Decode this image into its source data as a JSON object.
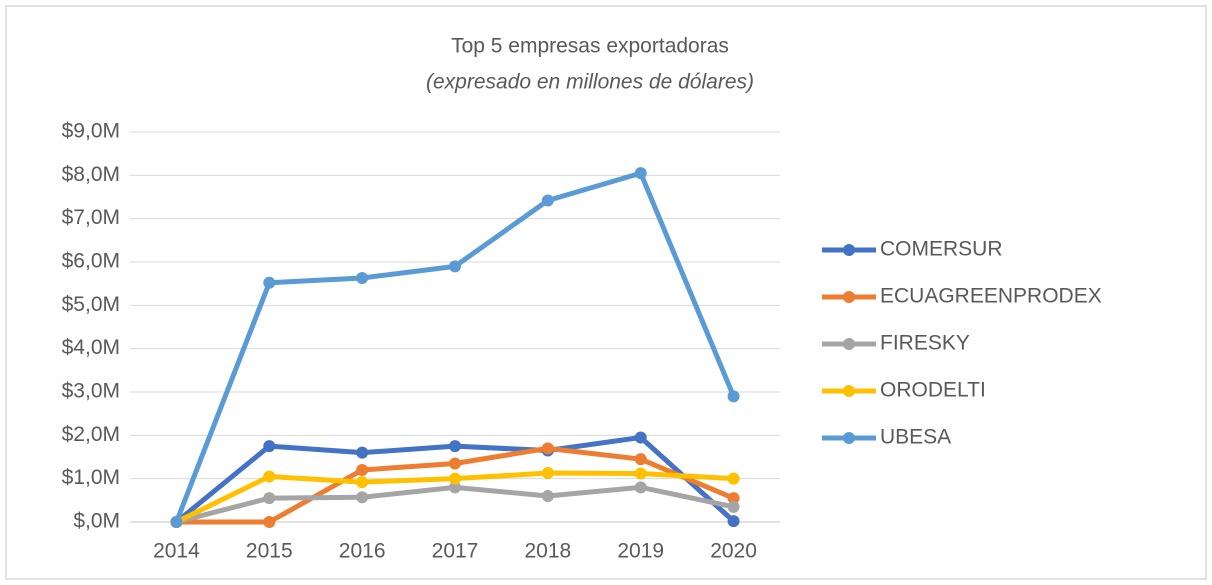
{
  "chart_data": {
    "type": "line",
    "title": "Top 5 empresas exportadoras",
    "subtitle": "(expresado en millones de dólares)",
    "categories": [
      "2014",
      "2015",
      "2016",
      "2017",
      "2018",
      "2019",
      "2020"
    ],
    "series": [
      {
        "name": "COMERSUR",
        "color": "#4472c4",
        "values": [
          0,
          1.75,
          1.6,
          1.75,
          1.65,
          1.95,
          0.02
        ]
      },
      {
        "name": "ECUAGREENPRODEX",
        "color": "#ed7d31",
        "values": [
          0,
          0,
          1.2,
          1.35,
          1.7,
          1.45,
          0.55
        ]
      },
      {
        "name": "FIRESKY",
        "color": "#a5a5a5",
        "values": [
          0,
          0.55,
          0.57,
          0.8,
          0.6,
          0.8,
          0.35
        ]
      },
      {
        "name": "ORODELTI",
        "color": "#ffc000",
        "values": [
          0,
          1.05,
          0.92,
          1.0,
          1.13,
          1.12,
          1.0
        ]
      },
      {
        "name": "UBESA",
        "color": "#5b9bd5",
        "values": [
          0,
          5.52,
          5.63,
          5.9,
          7.42,
          8.05,
          2.9
        ]
      }
    ],
    "ylim": [
      0,
      9
    ],
    "yticks": [
      {
        "value": 0,
        "label": "$,0M"
      },
      {
        "value": 1,
        "label": "$1,0M"
      },
      {
        "value": 2,
        "label": "$2,0M"
      },
      {
        "value": 3,
        "label": "$3,0M"
      },
      {
        "value": 4,
        "label": "$4,0M"
      },
      {
        "value": 5,
        "label": "$5,0M"
      },
      {
        "value": 6,
        "label": "$6,0M"
      },
      {
        "value": 7,
        "label": "$7,0M"
      },
      {
        "value": 8,
        "label": "$8,0M"
      },
      {
        "value": 9,
        "label": "$9,0M"
      }
    ],
    "grid": true,
    "legend": "right"
  }
}
